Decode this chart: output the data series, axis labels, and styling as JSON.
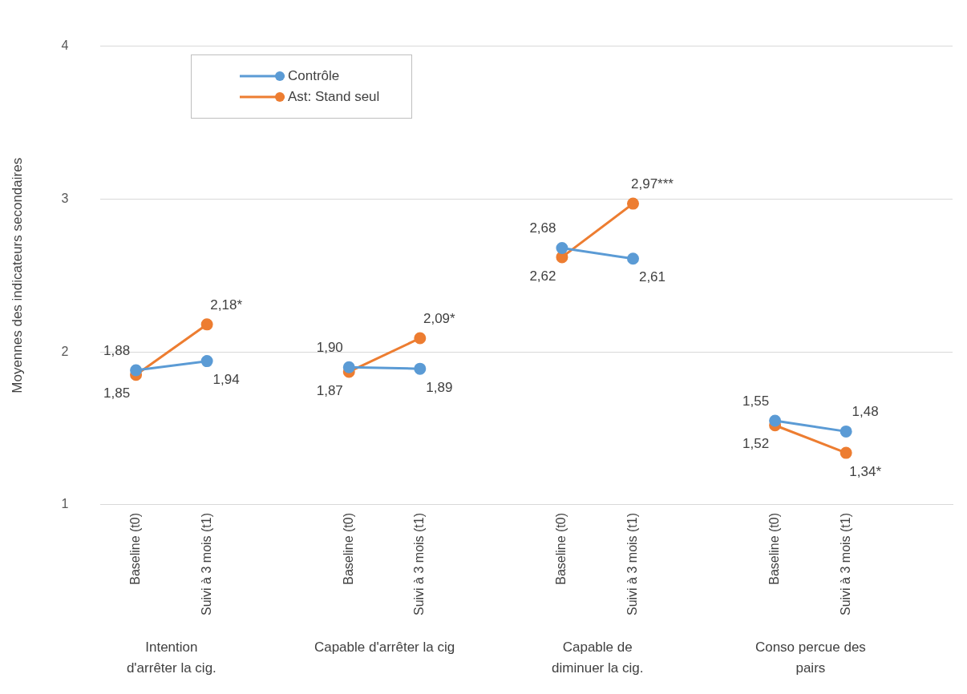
{
  "chart_data": {
    "type": "line",
    "ylabel": "Moyennes des indicateurs secondaires",
    "categories": [
      "Baseline (t0)",
      "Suivi à 3 mois (t1)",
      null,
      "Baseline (t0)",
      "Suivi à 3 mois (t1)",
      null,
      "Baseline (t0)",
      "Suivi à 3 mois (t1)",
      null,
      "Baseline (t0)",
      "Suivi à 3 mois (t1)",
      null
    ],
    "series": [
      {
        "name": "Contrôle",
        "color": "#5b9bd5",
        "values": [
          1.88,
          1.94,
          null,
          1.9,
          1.89,
          null,
          2.68,
          2.61,
          null,
          1.55,
          1.48,
          null
        ],
        "value_labels": [
          "1,88",
          "1,94",
          null,
          "1,90",
          "1,89",
          null,
          "2,68",
          "2,61",
          null,
          "1,55",
          "1,48",
          null
        ]
      },
      {
        "name": "Ast: Stand seul",
        "color": "#ed7d31",
        "values": [
          1.85,
          2.18,
          null,
          1.87,
          2.09,
          null,
          2.62,
          2.97,
          null,
          1.52,
          1.34,
          null
        ],
        "value_labels": [
          "1,85",
          "2,18*",
          null,
          "1,87",
          "2,09*",
          null,
          "2,62",
          "2,97***",
          null,
          "1,52",
          "1,34*",
          null
        ]
      }
    ],
    "annotations": [
      "Intention\nd'arrêter la cig.",
      "Capable d'arrêter la cig",
      "Capable de\ndiminuer la cig.",
      "Conso percue des\npairs"
    ],
    "ylim": [
      1,
      4
    ],
    "yticks": [
      1,
      2,
      3,
      4
    ],
    "grid": "y",
    "legend": "top left",
    "marker": "circle",
    "line_style": "solid"
  }
}
